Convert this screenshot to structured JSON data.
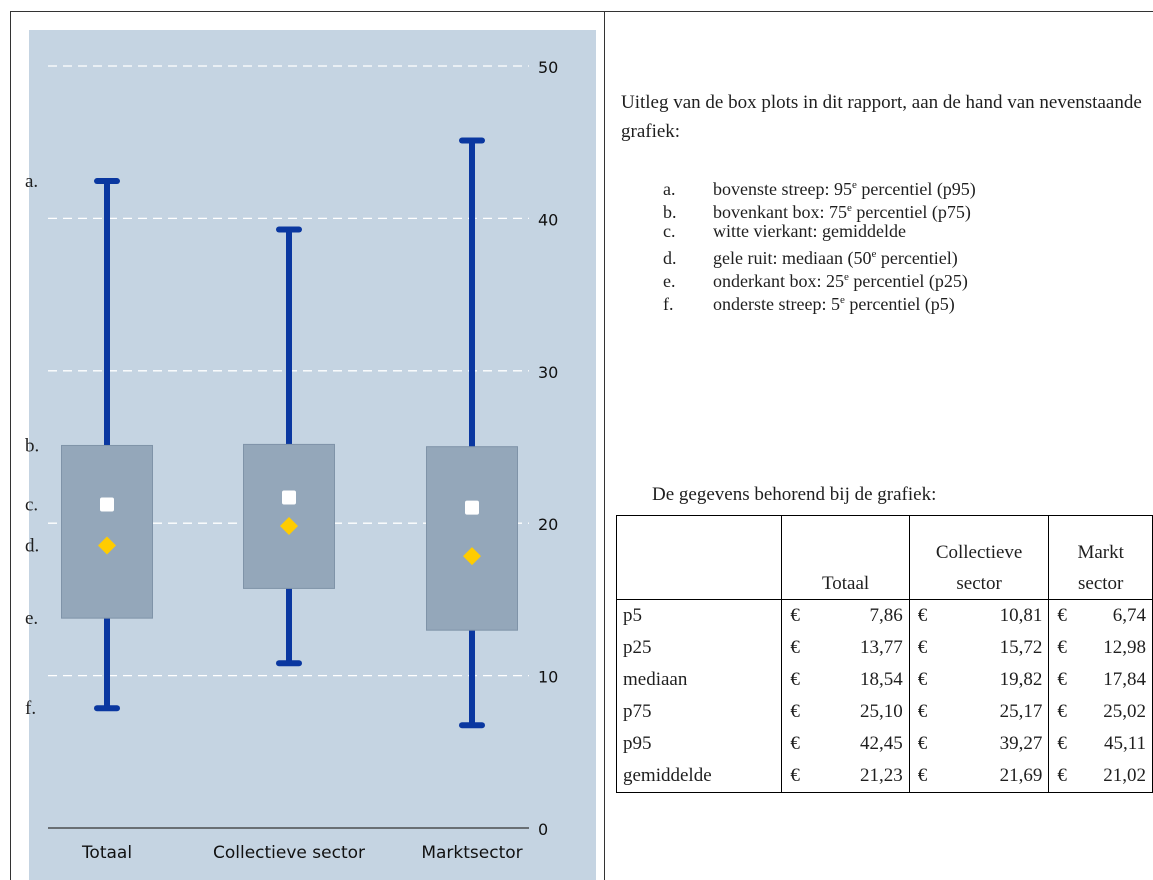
{
  "chart_data": {
    "type": "box",
    "categories": [
      "Totaal",
      "Collectieve sector",
      "Marktsector"
    ],
    "series": [
      {
        "p5": 7.86,
        "p25": 13.77,
        "median": 18.54,
        "p75": 25.1,
        "p95": 42.45,
        "mean": 21.23
      },
      {
        "p5": 10.81,
        "p25": 15.72,
        "median": 19.82,
        "p75": 25.17,
        "p95": 39.27,
        "mean": 21.69
      },
      {
        "p5": 6.74,
        "p25": 12.98,
        "median": 17.84,
        "p75": 25.02,
        "p95": 45.11,
        "mean": 21.02
      }
    ],
    "yticks": [
      0,
      10,
      20,
      30,
      40,
      50
    ],
    "ylim": [
      0,
      50
    ],
    "grid": true,
    "colors": {
      "background": "#c5d4e2",
      "box": "#94a7ba",
      "whisker": "#0a37a0",
      "mean": "#ffffff",
      "median": "#ffcc00",
      "grid": "#ffffff"
    },
    "side_markers": [
      {
        "label": "a.",
        "value": 42.45
      },
      {
        "label": "b.",
        "value": 25.1
      },
      {
        "label": "c.",
        "value": 21.23
      },
      {
        "label": "d.",
        "value": 18.54
      },
      {
        "label": "e.",
        "value": 13.77
      },
      {
        "label": "f.",
        "value": 7.86
      }
    ]
  },
  "explanation": {
    "intro": "Uitleg van de box plots in dit rapport, aan de hand van nevenstaande grafiek:",
    "items": [
      {
        "letter": "a.",
        "pre": "bovenste streep: 95",
        "sup": "e",
        "post": " percentiel (p95)"
      },
      {
        "letter": "b.",
        "pre": "bovenkant box: 75",
        "sup": "e",
        "post": " percentiel (p75)"
      },
      {
        "letter": "c.",
        "pre": "witte vierkant: gemiddelde",
        "sup": "",
        "post": ""
      },
      {
        "letter": "d.",
        "pre": "gele ruit: mediaan (50",
        "sup": "e",
        "post": " percentiel)"
      },
      {
        "letter": "e.",
        "pre": "onderkant box: 25",
        "sup": "e",
        "post": " percentiel (p25)"
      },
      {
        "letter": "f.",
        "pre": "onderste streep: 5",
        "sup": "e",
        "post": " percentiel (p5)"
      }
    ]
  },
  "data_caption": "De gegevens behorend bij de grafiek:",
  "table": {
    "headers": [
      "",
      "Totaal",
      "Collectieve sector",
      "Markt sector"
    ],
    "header_lines": [
      [
        ""
      ],
      [
        "Totaal"
      ],
      [
        "Collectieve",
        "sector"
      ],
      [
        "Markt",
        "sector"
      ]
    ],
    "currency": "€",
    "rows": [
      {
        "label": "p5",
        "values": [
          "7,86",
          "10,81",
          "6,74"
        ]
      },
      {
        "label": "p25",
        "values": [
          "13,77",
          "15,72",
          "12,98"
        ]
      },
      {
        "label": "mediaan",
        "values": [
          "18,54",
          "19,82",
          "17,84"
        ]
      },
      {
        "label": "p75",
        "values": [
          "25,10",
          "25,17",
          "25,02"
        ]
      },
      {
        "label": "p95",
        "values": [
          "42,45",
          "39,27",
          "45,11"
        ]
      },
      {
        "label": "gemiddelde",
        "values": [
          "21,23",
          "21,69",
          "21,02"
        ]
      }
    ]
  }
}
